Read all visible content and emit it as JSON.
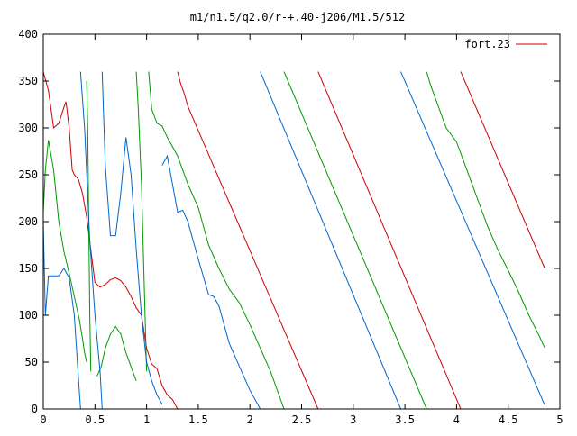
{
  "chart_data": {
    "type": "line",
    "title": "m1/n1.5/q2.0/r-+.40-j206/M1.5/512",
    "xlabel": "",
    "ylabel": "",
    "xlim": [
      0,
      5
    ],
    "ylim": [
      0,
      400
    ],
    "x_ticks": [
      0,
      0.5,
      1,
      1.5,
      2,
      2.5,
      3,
      3.5,
      4,
      4.5,
      5
    ],
    "x_tick_labels": [
      "0",
      "0.5",
      "1",
      "1.5",
      "2",
      "2.5",
      "3",
      "3.5",
      "4",
      "4.5",
      "5"
    ],
    "y_ticks": [
      0,
      50,
      100,
      150,
      200,
      250,
      300,
      350,
      400
    ],
    "y_tick_labels": [
      "0",
      "50",
      "100",
      "150",
      "200",
      "250",
      "300",
      "350",
      "400"
    ],
    "grid": false,
    "legend": {
      "position": "top-right",
      "entries": [
        "fort.23"
      ]
    },
    "series": [
      {
        "name": "fort.23",
        "color": "#cc0000",
        "segments": [
          [
            [
              0,
              360
            ],
            [
              0.05,
              340
            ],
            [
              0.1,
              300
            ],
            [
              0.15,
              305
            ],
            [
              0.2,
              322
            ],
            [
              0.22,
              328
            ],
            [
              0.25,
              300
            ],
            [
              0.28,
              255
            ],
            [
              0.3,
              250
            ],
            [
              0.34,
              245
            ],
            [
              0.38,
              230
            ],
            [
              0.42,
              205
            ],
            [
              0.46,
              170
            ],
            [
              0.5,
              135
            ],
            [
              0.55,
              130
            ],
            [
              0.6,
              133
            ],
            [
              0.65,
              138
            ],
            [
              0.7,
              140
            ],
            [
              0.75,
              137
            ],
            [
              0.8,
              130
            ],
            [
              0.85,
              120
            ],
            [
              0.9,
              108
            ],
            [
              0.95,
              100
            ],
            [
              1.0,
              65
            ],
            [
              1.05,
              48
            ],
            [
              1.1,
              43
            ],
            [
              1.15,
              25
            ],
            [
              1.2,
              15
            ],
            [
              1.25,
              10
            ],
            [
              1.3,
              0
            ]
          ],
          [
            [
              1.3,
              360
            ],
            [
              1.33,
              347
            ],
            [
              1.36,
              338
            ],
            [
              1.4,
              323
            ],
            [
              2.66,
              0
            ]
          ],
          [
            [
              2.66,
              360
            ],
            [
              4.04,
              0
            ]
          ],
          [
            [
              4.04,
              360
            ],
            [
              4.85,
              151
            ]
          ]
        ]
      },
      {
        "name": "",
        "color": "#009900",
        "segments": [
          [
            [
              0,
              210
            ],
            [
              0.02,
              255
            ],
            [
              0.05,
              287
            ],
            [
              0.1,
              255
            ],
            [
              0.15,
              200
            ],
            [
              0.2,
              168
            ],
            [
              0.25,
              145
            ],
            [
              0.3,
              120
            ],
            [
              0.35,
              95
            ],
            [
              0.38,
              75
            ],
            [
              0.4,
              60
            ],
            [
              0.42,
              50
            ]
          ],
          [
            [
              0.42,
              350
            ],
            [
              0.43,
              300
            ],
            [
              0.44,
              200
            ],
            [
              0.45,
              100
            ],
            [
              0.46,
              40
            ]
          ],
          [
            [
              0.52,
              35
            ],
            [
              0.56,
              45
            ],
            [
              0.6,
              65
            ],
            [
              0.65,
              80
            ],
            [
              0.7,
              88
            ],
            [
              0.75,
              80
            ],
            [
              0.8,
              60
            ],
            [
              0.85,
              45
            ],
            [
              0.9,
              30
            ]
          ],
          [
            [
              0.9,
              360
            ],
            [
              0.92,
              320
            ],
            [
              0.95,
              240
            ],
            [
              1.0,
              40
            ]
          ],
          [
            [
              1.02,
              360
            ],
            [
              1.05,
              320
            ],
            [
              1.1,
              305
            ],
            [
              1.15,
              302
            ],
            [
              1.2,
              290
            ],
            [
              1.25,
              280
            ],
            [
              1.3,
              270
            ],
            [
              1.35,
              255
            ],
            [
              1.4,
              240
            ],
            [
              1.5,
              215
            ],
            [
              1.6,
              175
            ],
            [
              1.7,
              150
            ],
            [
              1.8,
              128
            ],
            [
              1.9,
              113
            ],
            [
              2.0,
              90
            ],
            [
              2.1,
              65
            ],
            [
              2.2,
              40
            ],
            [
              2.33,
              0
            ]
          ],
          [
            [
              2.33,
              360
            ],
            [
              3.71,
              0
            ]
          ],
          [
            [
              3.71,
              360
            ],
            [
              3.75,
              345
            ],
            [
              3.8,
              330
            ],
            [
              3.9,
              300
            ],
            [
              4.0,
              285
            ],
            [
              4.1,
              255
            ],
            [
              4.2,
              225
            ],
            [
              4.3,
              195
            ],
            [
              4.4,
              170
            ],
            [
              4.5,
              148
            ],
            [
              4.6,
              125
            ],
            [
              4.7,
              100
            ],
            [
              4.8,
              78
            ],
            [
              4.85,
              66
            ]
          ]
        ]
      },
      {
        "name": "",
        "color": "#0066cc",
        "segments": [
          [
            [
              0,
              200
            ],
            [
              0.02,
              100
            ],
            [
              0.05,
              142
            ],
            [
              0.15,
              142
            ],
            [
              0.2,
              150
            ],
            [
              0.25,
              140
            ],
            [
              0.3,
              100
            ],
            [
              0.33,
              50
            ],
            [
              0.36,
              0
            ]
          ],
          [
            [
              0.36,
              360
            ],
            [
              0.4,
              300
            ],
            [
              0.45,
              180
            ],
            [
              0.5,
              100
            ],
            [
              0.55,
              40
            ],
            [
              0.57,
              0
            ]
          ],
          [
            [
              0.57,
              360
            ],
            [
              0.6,
              260
            ],
            [
              0.65,
              185
            ],
            [
              0.7,
              185
            ],
            [
              0.75,
              230
            ],
            [
              0.8,
              290
            ],
            [
              0.85,
              250
            ],
            [
              0.9,
              170
            ],
            [
              0.95,
              100
            ],
            [
              1.0,
              50
            ],
            [
              1.05,
              30
            ],
            [
              1.1,
              15
            ],
            [
              1.15,
              5
            ]
          ],
          [
            [
              1.15,
              260
            ],
            [
              1.2,
              270
            ],
            [
              1.25,
              240
            ],
            [
              1.3,
              210
            ],
            [
              1.35,
              212
            ],
            [
              1.4,
              200
            ],
            [
              1.5,
              160
            ],
            [
              1.6,
              122
            ],
            [
              1.65,
              120
            ],
            [
              1.7,
              110
            ],
            [
              1.8,
              70
            ],
            [
              1.9,
              45
            ],
            [
              2.0,
              20
            ],
            [
              2.1,
              0
            ]
          ],
          [
            [
              2.1,
              360
            ],
            [
              3.46,
              0
            ]
          ],
          [
            [
              3.46,
              360
            ],
            [
              4.85,
              5
            ]
          ]
        ]
      }
    ]
  }
}
